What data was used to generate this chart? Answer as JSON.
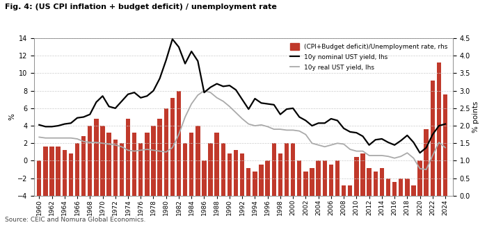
{
  "title": "Fig. 4: (US CPI inflation + budget deficit) / unemployment rate",
  "source": "Source: CEIC and Nomura Global Economics.",
  "ylabel_left": "%",
  "ylabel_right": "% points",
  "ylim_left": [
    -4,
    14
  ],
  "ylim_right": [
    0.0,
    4.5
  ],
  "yticks_left": [
    -4,
    -2,
    0,
    2,
    4,
    6,
    8,
    10,
    12,
    14
  ],
  "yticks_right": [
    0.0,
    0.5,
    1.0,
    1.5,
    2.0,
    2.5,
    3.0,
    3.5,
    4.0,
    4.5
  ],
  "background_color": "#ffffff",
  "grid_color": "#cccccc",
  "years": [
    1960,
    1961,
    1962,
    1963,
    1964,
    1965,
    1966,
    1967,
    1968,
    1969,
    1970,
    1971,
    1972,
    1973,
    1974,
    1975,
    1976,
    1977,
    1978,
    1979,
    1980,
    1981,
    1982,
    1983,
    1984,
    1985,
    1986,
    1987,
    1988,
    1989,
    1990,
    1991,
    1992,
    1993,
    1994,
    1995,
    1996,
    1997,
    1998,
    1999,
    2000,
    2001,
    2002,
    2003,
    2004,
    2005,
    2006,
    2007,
    2008,
    2009,
    2010,
    2011,
    2012,
    2013,
    2014,
    2015,
    2016,
    2017,
    2018,
    2019,
    2020,
    2021,
    2022,
    2023,
    2024
  ],
  "nominal_yield": [
    4.1,
    3.9,
    3.9,
    4.0,
    4.2,
    4.3,
    4.9,
    5.0,
    5.3,
    6.7,
    7.4,
    6.2,
    6.0,
    6.8,
    7.6,
    7.8,
    7.2,
    7.4,
    8.0,
    9.4,
    11.5,
    13.9,
    13.0,
    11.1,
    12.5,
    11.4,
    7.8,
    8.4,
    8.8,
    8.5,
    8.6,
    8.1,
    7.0,
    5.9,
    7.1,
    6.6,
    6.5,
    6.4,
    5.3,
    5.9,
    6.0,
    5.0,
    4.6,
    4.0,
    4.3,
    4.3,
    4.8,
    4.6,
    3.7,
    3.3,
    3.2,
    2.8,
    1.8,
    2.4,
    2.5,
    2.1,
    1.8,
    2.3,
    2.9,
    2.1,
    0.9,
    1.5,
    3.0,
    4.0,
    4.2
  ],
  "real_yield": [
    2.7,
    2.6,
    2.6,
    2.6,
    2.6,
    2.6,
    2.5,
    2.2,
    2.1,
    2.1,
    2.0,
    1.9,
    1.8,
    1.6,
    1.2,
    1.1,
    1.2,
    1.3,
    1.2,
    1.1,
    1.0,
    1.5,
    3.0,
    5.0,
    6.5,
    7.5,
    8.0,
    7.8,
    7.2,
    6.8,
    6.2,
    5.5,
    4.8,
    4.2,
    4.0,
    4.1,
    3.9,
    3.6,
    3.6,
    3.5,
    3.5,
    3.4,
    3.0,
    2.0,
    1.8,
    1.6,
    1.8,
    2.0,
    1.9,
    1.3,
    1.1,
    1.1,
    0.6,
    0.6,
    0.6,
    0.5,
    0.3,
    0.5,
    0.9,
    0.3,
    -0.9,
    -1.0,
    0.6,
    2.1,
    1.5
  ],
  "bar_values": [
    1.0,
    1.4,
    1.4,
    1.4,
    1.3,
    1.2,
    1.5,
    1.7,
    2.0,
    2.2,
    2.0,
    1.8,
    1.6,
    1.5,
    2.2,
    1.8,
    1.5,
    1.8,
    2.0,
    2.2,
    2.5,
    2.8,
    3.0,
    1.5,
    1.8,
    2.0,
    1.0,
    1.5,
    1.8,
    1.5,
    1.2,
    1.3,
    1.2,
    0.8,
    0.7,
    0.9,
    1.0,
    1.5,
    1.2,
    1.5,
    1.5,
    1.0,
    0.7,
    0.8,
    1.0,
    1.0,
    0.9,
    1.0,
    0.3,
    0.3,
    1.1,
    1.2,
    0.8,
    0.7,
    0.8,
    0.5,
    0.4,
    0.5,
    0.5,
    0.3,
    1.0,
    1.9,
    3.3,
    3.8,
    2.9
  ],
  "bar_color": "#c0392b",
  "nominal_color": "#000000",
  "real_color": "#aaaaaa",
  "xtick_years": [
    1960,
    1962,
    1964,
    1966,
    1968,
    1970,
    1972,
    1974,
    1976,
    1978,
    1980,
    1982,
    1984,
    1986,
    1988,
    1990,
    1992,
    1994,
    1996,
    1998,
    2000,
    2002,
    2004,
    2006,
    2008,
    2010,
    2012,
    2014,
    2016,
    2018,
    2020,
    2022,
    2024
  ],
  "legend_items": [
    {
      "label": "(CPI+Budget deficit)/Unemployment rate, rhs",
      "color": "#c0392b",
      "type": "bar"
    },
    {
      "label": "10y nominal UST yield, lhs",
      "color": "#000000",
      "type": "line"
    },
    {
      "label": "10y real UST yield, lhs",
      "color": "#aaaaaa",
      "type": "line"
    }
  ]
}
